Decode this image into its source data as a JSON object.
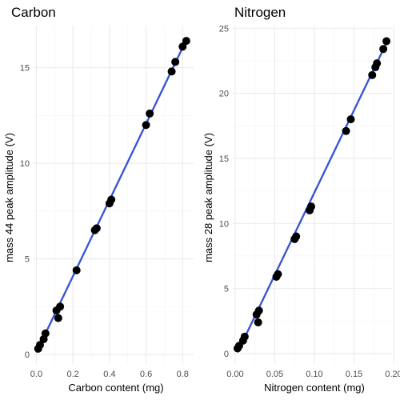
{
  "chart_data": [
    {
      "type": "scatter",
      "title": "Carbon",
      "xlabel": "Carbon content (mg)",
      "ylabel": "mass 44 peak amplitude (V)",
      "xlim": [
        -0.015,
        0.86
      ],
      "ylim": [
        -0.5,
        17.2
      ],
      "xticks": [
        0.0,
        0.2,
        0.4,
        0.6,
        0.8
      ],
      "xtick_labels": [
        "0.0",
        "0.2",
        "0.4",
        "0.6",
        "0.8"
      ],
      "yticks": [
        0,
        5,
        10,
        15
      ],
      "ytick_labels": [
        "0",
        "5",
        "10",
        "15"
      ],
      "grid": true,
      "trendline": {
        "x": [
          0.0,
          0.815
        ],
        "y": [
          0.1,
          16.35
        ],
        "color": "#3a56d8"
      },
      "series": [
        {
          "color": "#000000",
          "x": [
            0.01,
            0.02,
            0.04,
            0.05,
            0.11,
            0.12,
            0.13,
            0.22,
            0.32,
            0.33,
            0.4,
            0.41,
            0.6,
            0.62,
            0.74,
            0.76,
            0.8,
            0.82
          ],
          "y": [
            0.3,
            0.5,
            0.8,
            1.1,
            2.3,
            1.9,
            2.5,
            4.4,
            6.5,
            6.6,
            7.9,
            8.1,
            12.0,
            12.6,
            14.8,
            15.3,
            16.1,
            16.4
          ]
        }
      ]
    },
    {
      "type": "scatter",
      "title": "Nitrogen",
      "xlabel": "Nitrogen content (mg)",
      "ylabel": "mass 28 peak amplitude (V)",
      "xlim": [
        -0.003,
        0.198
      ],
      "ylim": [
        -0.8,
        25.2
      ],
      "xticks": [
        0.0,
        0.05,
        0.1,
        0.15,
        0.2
      ],
      "xtick_labels": [
        "0.00",
        "0.05",
        "0.10",
        "0.15",
        "0.20"
      ],
      "yticks": [
        0,
        5,
        10,
        15,
        20,
        25
      ],
      "ytick_labels": [
        "0",
        "5",
        "10",
        "15",
        "20",
        "25"
      ],
      "grid": true,
      "trendline": {
        "x": [
          0.003,
          0.192
        ],
        "y": [
          0.1,
          24.0
        ],
        "color": "#3a56d8"
      },
      "series": [
        {
          "color": "#000000",
          "x": [
            0.003,
            0.005,
            0.01,
            0.012,
            0.027,
            0.029,
            0.03,
            0.052,
            0.054,
            0.075,
            0.077,
            0.094,
            0.096,
            0.14,
            0.146,
            0.173,
            0.177,
            0.179,
            0.187,
            0.191
          ],
          "y": [
            0.4,
            0.6,
            1.0,
            1.3,
            3.0,
            2.4,
            3.3,
            5.9,
            6.1,
            8.8,
            9.0,
            11.0,
            11.3,
            17.1,
            18.0,
            21.4,
            22.0,
            22.3,
            23.4,
            24.0
          ]
        }
      ]
    }
  ]
}
